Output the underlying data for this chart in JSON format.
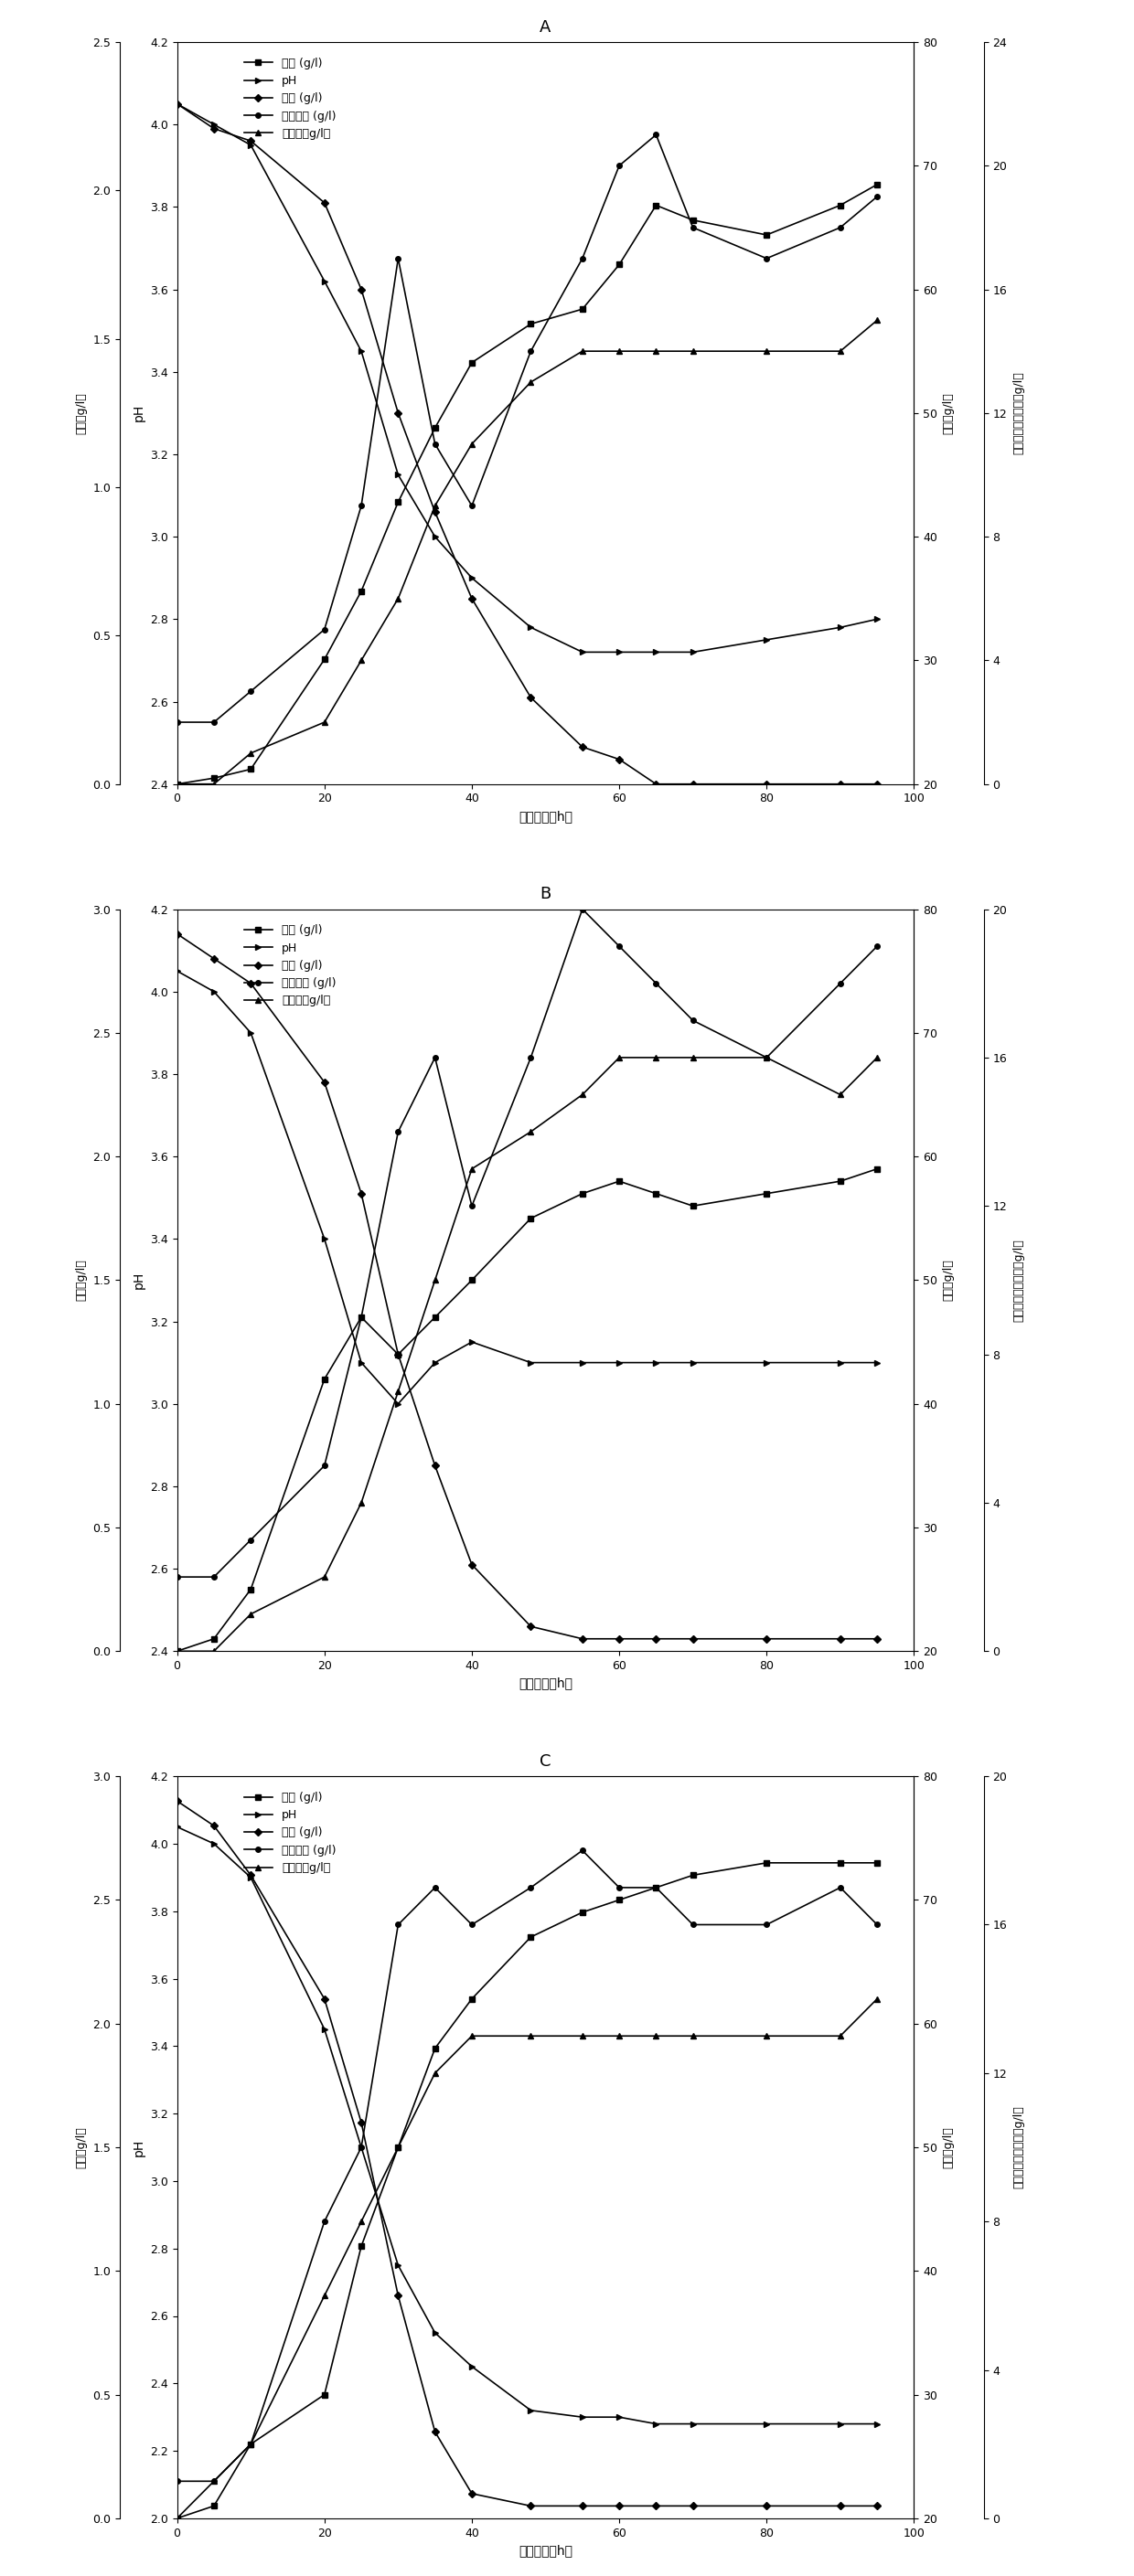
{
  "panels": [
    "A",
    "B",
    "C"
  ],
  "xlabel": "培养时间（h）",
  "legend_labels": [
    "草酸 (g/l)",
    "pH",
    "残糖 (g/l)",
    "硬葡聚糖 (g/l)",
    "生物量（g/l）"
  ],
  "ylabel_pH": "pH",
  "ylabel_ox": "草酸（g/l）",
  "ylabel_res": "残糖（g/l）",
  "ylabel_bio": "生物量，硬葡聚糖（g/l）",
  "A": {
    "title": "A",
    "ph_ylim": [
      2.4,
      4.2
    ],
    "ox_ylim": [
      0.0,
      2.5
    ],
    "res_ylim": [
      20,
      80
    ],
    "bio_ylim": [
      0,
      24
    ],
    "ph_yticks": [
      2.4,
      2.6,
      2.8,
      3.0,
      3.2,
      3.4,
      3.6,
      3.8,
      4.0,
      4.2
    ],
    "ox_yticks": [
      0.0,
      0.5,
      1.0,
      1.5,
      2.0,
      2.5
    ],
    "res_yticks": [
      20,
      30,
      40,
      50,
      60,
      70,
      80
    ],
    "bio_yticks": [
      0,
      4,
      8,
      12,
      16,
      20,
      24
    ],
    "time": [
      0,
      5,
      10,
      20,
      25,
      30,
      35,
      40,
      48,
      55,
      60,
      65,
      70,
      80,
      90,
      95
    ],
    "oxalic": [
      0.0,
      0.02,
      0.05,
      0.42,
      0.65,
      0.95,
      1.2,
      1.42,
      1.55,
      1.6,
      1.75,
      1.95,
      1.9,
      1.85,
      1.95,
      2.02
    ],
    "pH": [
      4.05,
      4.0,
      3.95,
      3.62,
      3.45,
      3.15,
      3.0,
      2.9,
      2.78,
      2.72,
      2.72,
      2.72,
      2.72,
      2.75,
      2.78,
      2.8
    ],
    "residual_sugar": [
      75,
      73,
      72,
      67,
      60,
      50,
      42,
      35,
      27,
      23,
      22,
      20,
      20,
      20,
      20,
      20
    ],
    "scleroglucan": [
      2,
      2,
      3,
      5,
      9,
      17,
      11,
      9,
      14,
      17,
      20,
      21,
      18,
      17,
      18,
      19
    ],
    "biomass": [
      0,
      0,
      1,
      2,
      4,
      6,
      9,
      11,
      13,
      14,
      14,
      14,
      14,
      14,
      14,
      15
    ]
  },
  "B": {
    "title": "B",
    "ph_ylim": [
      2.4,
      4.2
    ],
    "ox_ylim": [
      0.0,
      3.0
    ],
    "res_ylim": [
      20,
      80
    ],
    "bio_ylim": [
      0,
      20
    ],
    "ph_yticks": [
      2.4,
      2.6,
      2.8,
      3.0,
      3.2,
      3.4,
      3.6,
      3.8,
      4.0,
      4.2
    ],
    "ox_yticks": [
      0.0,
      0.5,
      1.0,
      1.5,
      2.0,
      2.5,
      3.0
    ],
    "res_yticks": [
      20,
      30,
      40,
      50,
      60,
      70,
      80
    ],
    "bio_yticks": [
      0,
      4,
      8,
      12,
      16,
      20
    ],
    "time": [
      0,
      5,
      10,
      20,
      25,
      30,
      35,
      40,
      48,
      55,
      60,
      65,
      70,
      80,
      90,
      95
    ],
    "oxalic": [
      0.0,
      0.05,
      0.25,
      1.1,
      1.35,
      1.2,
      1.35,
      1.5,
      1.75,
      1.85,
      1.9,
      1.85,
      1.8,
      1.85,
      1.9,
      1.95
    ],
    "pH": [
      4.05,
      4.0,
      3.9,
      3.4,
      3.1,
      3.0,
      3.1,
      3.15,
      3.1,
      3.1,
      3.1,
      3.1,
      3.1,
      3.1,
      3.1,
      3.1
    ],
    "residual_sugar": [
      78,
      76,
      74,
      66,
      57,
      44,
      35,
      27,
      22,
      21,
      21,
      21,
      21,
      21,
      21,
      21
    ],
    "scleroglucan": [
      2,
      2,
      3,
      5,
      9,
      14,
      16,
      12,
      16,
      20,
      19,
      18,
      17,
      16,
      18,
      19
    ],
    "biomass": [
      0,
      0,
      1,
      2,
      4,
      7,
      10,
      13,
      14,
      15,
      16,
      16,
      16,
      16,
      15,
      16
    ]
  },
  "C": {
    "title": "C",
    "ph_ylim": [
      2.0,
      4.2
    ],
    "ox_ylim": [
      0.0,
      3.0
    ],
    "res_ylim": [
      20,
      80
    ],
    "bio_ylim": [
      0,
      20
    ],
    "ph_yticks": [
      2.0,
      2.2,
      2.4,
      2.6,
      2.8,
      3.0,
      3.2,
      3.4,
      3.6,
      3.8,
      4.0,
      4.2
    ],
    "ox_yticks": [
      0.0,
      0.5,
      1.0,
      1.5,
      2.0,
      2.5,
      3.0
    ],
    "res_yticks": [
      20,
      30,
      40,
      50,
      60,
      70,
      80
    ],
    "bio_yticks": [
      0,
      4,
      8,
      12,
      16,
      20
    ],
    "time": [
      0,
      5,
      10,
      20,
      25,
      30,
      35,
      40,
      48,
      55,
      60,
      65,
      70,
      80,
      90,
      95
    ],
    "oxalic": [
      0.0,
      0.05,
      0.3,
      0.5,
      1.1,
      1.5,
      1.9,
      2.1,
      2.35,
      2.45,
      2.5,
      2.55,
      2.6,
      2.65,
      2.65,
      2.65
    ],
    "pH": [
      4.05,
      4.0,
      3.9,
      3.45,
      3.1,
      2.75,
      2.55,
      2.45,
      2.32,
      2.3,
      2.3,
      2.28,
      2.28,
      2.28,
      2.28,
      2.28
    ],
    "residual_sugar": [
      78,
      76,
      72,
      62,
      52,
      38,
      27,
      22,
      21,
      21,
      21,
      21,
      21,
      21,
      21,
      21
    ],
    "scleroglucan": [
      1,
      1,
      2,
      8,
      10,
      16,
      17,
      16,
      17,
      18,
      17,
      17,
      16,
      16,
      17,
      16
    ],
    "biomass": [
      0,
      1,
      2,
      6,
      8,
      10,
      12,
      13,
      13,
      13,
      13,
      13,
      13,
      13,
      13,
      14
    ]
  },
  "line_color": "#000000",
  "marker_oxalic": "s",
  "marker_pH": ">",
  "marker_residual": "D",
  "marker_scleroglucan": "o",
  "marker_biomass": "^",
  "markersize": 4,
  "linewidth": 1.2
}
